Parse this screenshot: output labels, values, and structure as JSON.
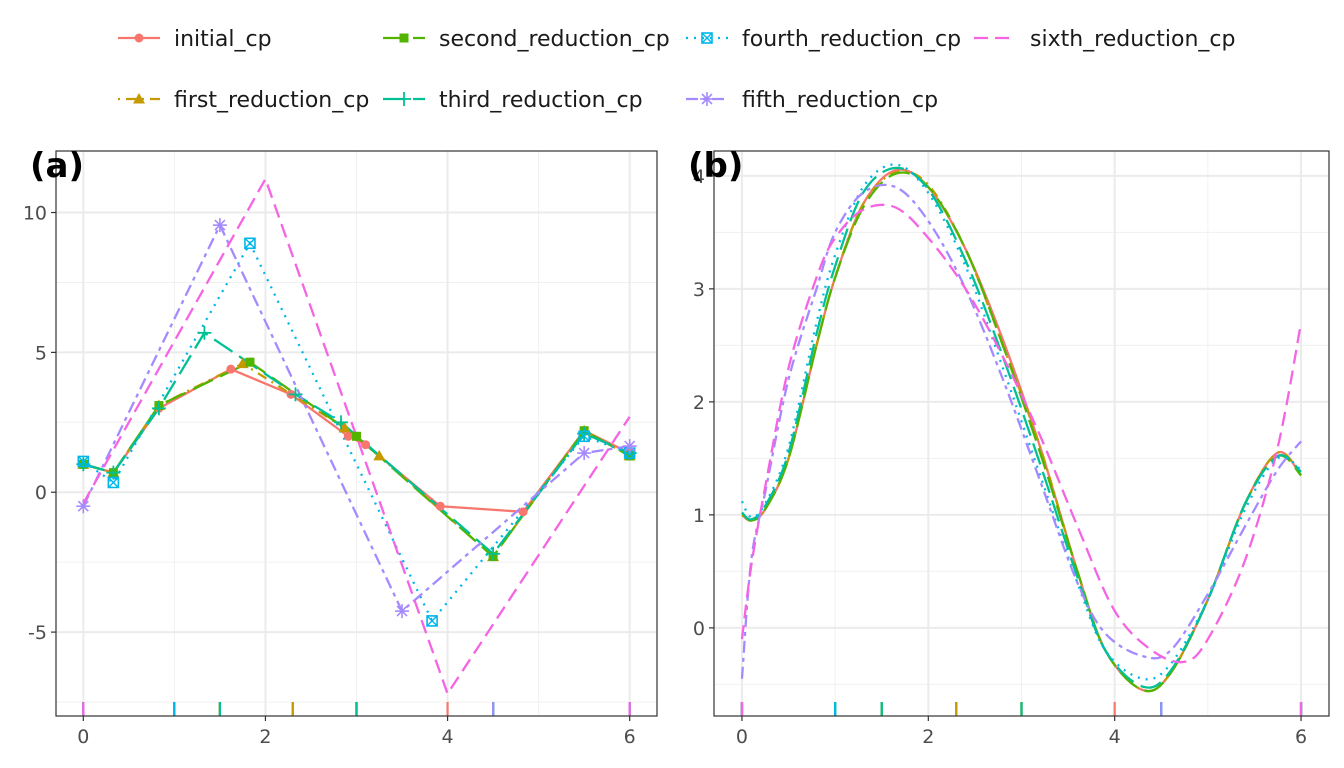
{
  "chart_data": [
    {
      "type": "line",
      "panel_label": "(a)",
      "xlim": [
        -0.3,
        6.3
      ],
      "ylim": [
        -8.0,
        12.2
      ],
      "xticks": [
        0,
        2,
        4,
        6
      ],
      "yticks": [
        -5,
        0,
        5,
        10
      ],
      "xtick_labels": [
        "0",
        "2",
        "4",
        "6"
      ],
      "ytick_labels": [
        "-5",
        "0",
        "5",
        "10"
      ],
      "grid": true,
      "rug_y": -7.7,
      "series": [
        {
          "name": "initial_cp",
          "color": "#F8766D",
          "dash": "solid",
          "marker": "circle",
          "x": [
            0,
            0.33,
            0.83,
            1.62,
            2.28,
            2.91,
            3.1,
            3.92,
            4.83,
            5.5,
            6
          ],
          "y": [
            1.0,
            0.7,
            3.0,
            4.4,
            3.5,
            2.0,
            1.7,
            -0.5,
            -0.7,
            2.2,
            1.4
          ],
          "rug": [
            0,
            1.0,
            1.5,
            2.3,
            3.0,
            4.0,
            4.5,
            6.0
          ]
        },
        {
          "name": "first_reduction_cp",
          "color": "#C49A00",
          "dash": "dotdash",
          "marker": "triangle",
          "x": [
            0,
            0.33,
            0.83,
            1.75,
            2.87,
            3.25,
            4.5,
            5.5,
            6
          ],
          "y": [
            1.0,
            0.7,
            3.1,
            4.6,
            2.3,
            1.3,
            -2.3,
            2.2,
            1.3
          ],
          "rug": [
            0,
            1.0,
            1.5,
            2.3,
            3.0,
            4.5,
            6.0
          ]
        },
        {
          "name": "second_reduction_cp",
          "color": "#53B400",
          "dash": "longdash",
          "marker": "square",
          "x": [
            0,
            0.33,
            0.83,
            1.83,
            3.0,
            4.5,
            5.5,
            6
          ],
          "y": [
            1.0,
            0.7,
            3.1,
            4.65,
            2.0,
            -2.3,
            2.2,
            1.3
          ],
          "rug": [
            0,
            1.0,
            1.5,
            3.0,
            4.5,
            6.0
          ]
        },
        {
          "name": "third_reduction_cp",
          "color": "#00C094",
          "dash": "longdash",
          "marker": "plus",
          "x": [
            0,
            0.33,
            0.83,
            1.33,
            2.33,
            2.83,
            4.5,
            5.5,
            6
          ],
          "y": [
            1.0,
            0.7,
            3.0,
            5.7,
            3.5,
            2.5,
            -2.2,
            2.1,
            1.4
          ],
          "rug": [
            0,
            1.0,
            1.5,
            3.0,
            4.5,
            6.0
          ]
        },
        {
          "name": "fourth_reduction_cp",
          "color": "#00B6EB",
          "dash": "dotted",
          "marker": "squarex",
          "x": [
            0,
            0.33,
            1.83,
            3.83,
            5.5,
            6
          ],
          "y": [
            1.1,
            0.35,
            8.9,
            -4.6,
            2.0,
            1.4
          ],
          "rug": [
            0,
            1.0,
            4.5,
            6.0
          ]
        },
        {
          "name": "fifth_reduction_cp",
          "color": "#A58AFF",
          "dash": "twodash",
          "marker": "asterisk",
          "x": [
            0,
            1.5,
            3.5,
            5.5,
            6
          ],
          "y": [
            -0.5,
            9.55,
            -4.25,
            1.4,
            1.65
          ],
          "rug": [
            0,
            4.5,
            6.0
          ]
        },
        {
          "name": "sixth_reduction_cp",
          "color": "#F564E3",
          "dash": "dashed",
          "marker": "none",
          "x": [
            0,
            2.0,
            4.0,
            6
          ],
          "y": [
            -0.4,
            11.2,
            -7.2,
            2.7
          ],
          "rug": [
            0,
            6.0
          ]
        }
      ]
    },
    {
      "type": "line",
      "panel_label": "(b)",
      "xlim": [
        -0.3,
        6.3
      ],
      "ylim": [
        -0.78,
        4.22
      ],
      "xticks": [
        0,
        2,
        4,
        6
      ],
      "yticks": [
        0,
        1,
        2,
        3,
        4
      ],
      "xtick_labels": [
        "0",
        "2",
        "4",
        "6"
      ],
      "ytick_labels": [
        "0",
        "1",
        "2",
        "3",
        "4"
      ],
      "grid": true,
      "rug_y": -0.7,
      "series": [
        {
          "name": "initial_cp",
          "color": "#F8766D",
          "dash": "solid",
          "x": [
            0,
            0.1,
            0.25,
            0.5,
            0.8,
            1.0,
            1.3,
            1.65,
            2.0,
            2.4,
            2.8,
            3.2,
            3.6,
            3.9,
            4.3,
            4.6,
            5.0,
            5.4,
            5.75,
            6.0
          ],
          "y": [
            1.0,
            0.95,
            1.05,
            1.5,
            2.5,
            3.1,
            3.75,
            4.05,
            3.9,
            3.35,
            2.55,
            1.6,
            0.5,
            -0.2,
            -0.55,
            -0.4,
            0.25,
            1.1,
            1.55,
            1.35
          ],
          "rug": [
            0,
            1.5,
            2.3,
            3.0,
            4.0,
            4.5,
            6.0
          ]
        },
        {
          "name": "first_reduction_cp",
          "color": "#C49A00",
          "dash": "dotdash",
          "x": [
            0,
            0.1,
            0.25,
            0.5,
            0.8,
            1.0,
            1.3,
            1.65,
            2.0,
            2.4,
            2.8,
            3.2,
            3.6,
            3.9,
            4.3,
            4.6,
            5.0,
            5.4,
            5.75,
            6.0
          ],
          "y": [
            1.0,
            0.95,
            1.05,
            1.5,
            2.5,
            3.1,
            3.75,
            4.03,
            3.92,
            3.35,
            2.5,
            1.6,
            0.5,
            -0.2,
            -0.55,
            -0.4,
            0.25,
            1.1,
            1.55,
            1.35
          ],
          "rug": [
            0,
            1.5,
            2.3,
            3.0,
            4.5,
            6.0
          ]
        },
        {
          "name": "second_reduction_cp",
          "color": "#53B400",
          "dash": "longdash",
          "x": [
            0,
            0.1,
            0.25,
            0.5,
            0.8,
            1.0,
            1.3,
            1.65,
            2.0,
            2.4,
            2.8,
            3.2,
            3.6,
            3.9,
            4.3,
            4.6,
            5.0,
            5.4,
            5.75,
            6.0
          ],
          "y": [
            1.02,
            0.95,
            1.05,
            1.5,
            2.5,
            3.1,
            3.72,
            4.02,
            3.9,
            3.35,
            2.5,
            1.55,
            0.5,
            -0.2,
            -0.55,
            -0.4,
            0.25,
            1.1,
            1.52,
            1.35
          ],
          "rug": [
            0,
            1.0,
            1.5,
            3.0,
            4.5,
            6.0
          ]
        },
        {
          "name": "third_reduction_cp",
          "color": "#00C094",
          "dash": "longdash",
          "x": [
            0,
            0.1,
            0.25,
            0.5,
            0.8,
            1.0,
            1.3,
            1.65,
            2.0,
            2.4,
            2.8,
            3.2,
            3.6,
            3.9,
            4.3,
            4.6,
            5.0,
            5.4,
            5.75,
            6.0
          ],
          "y": [
            1.02,
            0.96,
            1.08,
            1.55,
            2.6,
            3.2,
            3.85,
            4.07,
            3.88,
            3.25,
            2.4,
            1.45,
            0.45,
            -0.2,
            -0.52,
            -0.38,
            0.25,
            1.1,
            1.52,
            1.38
          ],
          "rug": [
            0,
            1.0,
            1.5,
            3.0,
            4.5,
            6.0
          ]
        },
        {
          "name": "fourth_reduction_cp",
          "color": "#00B6EB",
          "dash": "dotted",
          "x": [
            0,
            0.1,
            0.25,
            0.5,
            0.8,
            1.0,
            1.3,
            1.65,
            2.0,
            2.4,
            2.8,
            3.2,
            3.6,
            3.9,
            4.3,
            4.6,
            5.0,
            5.4,
            5.75,
            6.0
          ],
          "y": [
            1.12,
            0.98,
            1.1,
            1.6,
            2.7,
            3.3,
            3.9,
            4.1,
            3.85,
            3.2,
            2.3,
            1.35,
            0.4,
            -0.2,
            -0.45,
            -0.32,
            0.25,
            1.05,
            1.5,
            1.4
          ],
          "rug": [
            0,
            1.0,
            4.5,
            6.0
          ]
        },
        {
          "name": "fifth_reduction_cp",
          "color": "#A58AFF",
          "dash": "twodash",
          "x": [
            0,
            0.1,
            0.25,
            0.5,
            0.8,
            1.0,
            1.3,
            1.65,
            2.0,
            2.4,
            2.8,
            3.2,
            3.6,
            3.9,
            4.3,
            4.6,
            5.0,
            5.4,
            5.75,
            6.0
          ],
          "y": [
            -0.45,
            0.6,
            1.2,
            2.2,
            3.0,
            3.5,
            3.85,
            3.9,
            3.6,
            3.0,
            2.2,
            1.3,
            0.4,
            -0.05,
            -0.25,
            -0.2,
            0.3,
            0.9,
            1.4,
            1.65
          ],
          "rug": [
            0,
            4.5,
            6.0
          ]
        },
        {
          "name": "sixth_reduction_cp",
          "color": "#F564E3",
          "dash": "dashed",
          "x": [
            0,
            0.1,
            0.25,
            0.5,
            0.8,
            1.0,
            1.3,
            1.65,
            2.0,
            2.4,
            2.8,
            3.2,
            3.6,
            4.0,
            4.4,
            4.75,
            5.0,
            5.4,
            5.75,
            6.0
          ],
          "y": [
            -0.1,
            0.55,
            1.25,
            2.3,
            3.1,
            3.45,
            3.7,
            3.72,
            3.45,
            3.0,
            2.4,
            1.7,
            0.9,
            0.15,
            -0.2,
            -0.3,
            -0.1,
            0.6,
            1.6,
            2.7
          ],
          "rug": [
            0,
            6.0
          ]
        }
      ]
    }
  ]
}
